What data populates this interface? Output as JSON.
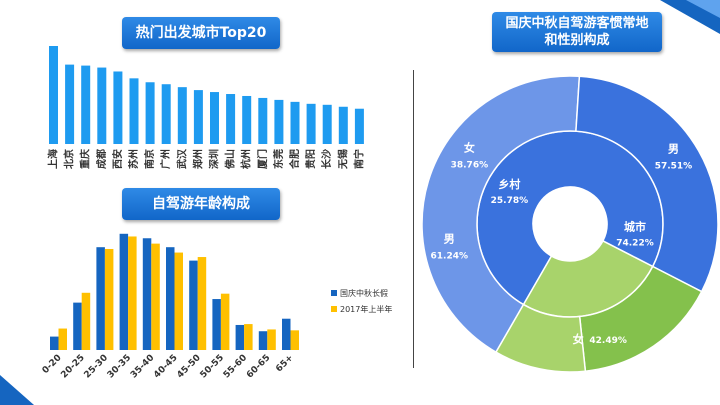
{
  "colors": {
    "title_bg": "#1a73d9",
    "bar_blue": "#1e9bf0",
    "holiday": "#1565c0",
    "half_year": "#ffc000",
    "urban_inner": "#3a72dd",
    "urban_outer": "#6d96e8",
    "rural_inner": "#a8d36b",
    "rural_outer": "#84c14c"
  },
  "chart_data": [
    {
      "type": "bar",
      "title": "热门出发城市Top20",
      "categories": [
        "上海",
        "北京",
        "重庆",
        "成都",
        "西安",
        "苏州",
        "南京",
        "广州",
        "武汉",
        "郑州",
        "深圳",
        "佛山",
        "杭州",
        "厦门",
        "东莞",
        "合肥",
        "贵阳",
        "长沙",
        "无锡",
        "南宁"
      ],
      "values": [
        100,
        81,
        80,
        78,
        74,
        67,
        63,
        61,
        58,
        55,
        53,
        51,
        49,
        47,
        45,
        43,
        41,
        40,
        38,
        36
      ],
      "ylim": [
        0,
        105
      ]
    },
    {
      "type": "bar",
      "title": "自驾游年龄构成",
      "categories": [
        "0-20",
        "20-25",
        "25-30",
        "30-35",
        "35-40",
        "40-45",
        "45-50",
        "50-55",
        "55-60",
        "60-65",
        "65+"
      ],
      "series": [
        {
          "name": "国庆中秋长假",
          "values": [
            1.5,
            5.3,
            11.5,
            13.0,
            12.5,
            11.5,
            10.0,
            5.7,
            2.8,
            2.1,
            3.5
          ]
        },
        {
          "name": "2017年上半年",
          "values": [
            2.4,
            6.4,
            11.3,
            12.7,
            11.9,
            10.9,
            10.4,
            6.3,
            2.9,
            2.3,
            2.2
          ]
        }
      ],
      "ylim": [
        0,
        14
      ],
      "legend_position": "right"
    },
    {
      "type": "pie",
      "title": "国庆中秋自驾游客惯常地和性别构成",
      "inner": [
        {
          "label": "城市",
          "value": "74.22%",
          "pct": 74.22
        },
        {
          "label": "乡村",
          "value": "25.78%",
          "pct": 25.78
        }
      ],
      "outer": [
        {
          "label": "男",
          "value": "57.51%",
          "pct": 42.68
        },
        {
          "label": "女",
          "value": "42.49%",
          "pct": 31.54
        },
        {
          "label": "男",
          "value": "61.24%",
          "pct": 15.79
        },
        {
          "label": "女",
          "value": "38.76%",
          "pct": 9.99
        }
      ]
    }
  ]
}
